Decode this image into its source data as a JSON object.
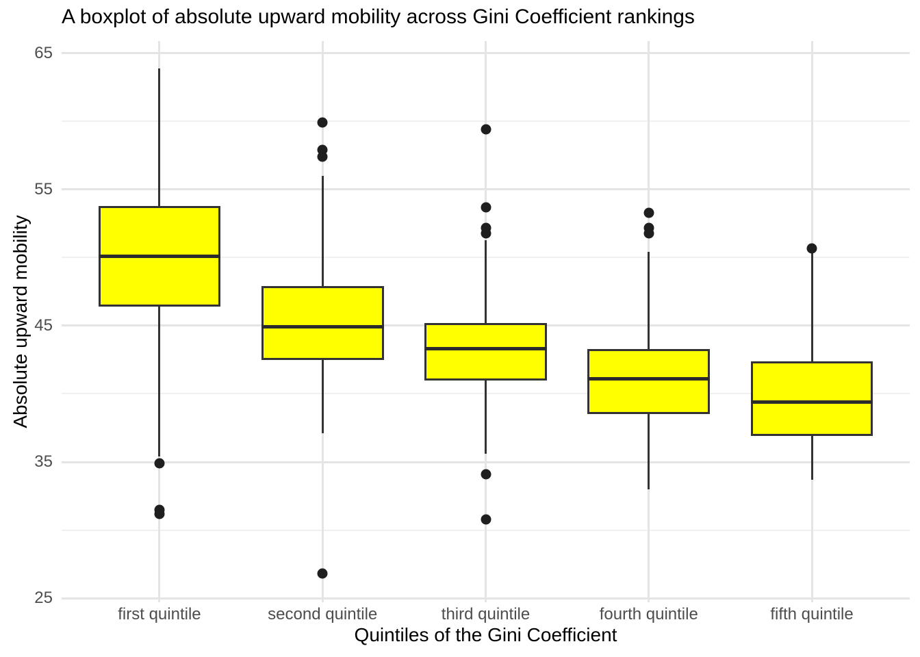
{
  "chart_data": {
    "type": "boxplot",
    "title": "A boxplot of absolute upward mobility across Gini Coefficient rankings",
    "xlabel": "Quintiles of the Gini Coefficient",
    "ylabel": "Absolute upward mobility",
    "categories": [
      "first quintile",
      "second quintile",
      "third quintile",
      "fourth quintile",
      "fifth quintile"
    ],
    "ylim": [
      24.7,
      65.9
    ],
    "yticks_major": [
      25,
      35,
      45,
      55,
      65
    ],
    "yticks_minor": [
      30,
      40,
      50,
      60
    ],
    "grid": "horizontal major+minor, vertical major at category centers",
    "legend": "none",
    "colors": {
      "box_fill": "#ffff00",
      "box_border": "#333333",
      "median_line": "#2b2b2b",
      "outlier_dot": "#1f1f1f",
      "grid_major": "#e4e4e4",
      "grid_minor": "#f0f0f0",
      "tick_label": "#4d4d4d",
      "title_text": "#000000"
    },
    "series": [
      {
        "category": "first quintile",
        "whisker_low": 35.4,
        "q1": 46.4,
        "median": 50.1,
        "q3": 53.8,
        "whisker_high": 63.9,
        "outliers": [
          34.9,
          31.5,
          31.2
        ]
      },
      {
        "category": "second quintile",
        "whisker_low": 37.1,
        "q1": 42.5,
        "median": 44.9,
        "q3": 47.9,
        "whisker_high": 56.0,
        "outliers": [
          59.9,
          57.9,
          57.4,
          26.8
        ]
      },
      {
        "category": "third quintile",
        "whisker_low": 35.6,
        "q1": 41.0,
        "median": 43.3,
        "q3": 45.2,
        "whisker_high": 51.3,
        "outliers": [
          59.4,
          53.7,
          52.2,
          51.8,
          34.1,
          30.8
        ]
      },
      {
        "category": "fourth quintile",
        "whisker_low": 33.0,
        "q1": 38.5,
        "median": 41.1,
        "q3": 43.3,
        "whisker_high": 50.4,
        "outliers": [
          53.3,
          52.2,
          51.8
        ]
      },
      {
        "category": "fifth quintile",
        "whisker_low": 33.7,
        "q1": 36.9,
        "median": 39.4,
        "q3": 42.4,
        "whisker_high": 50.4,
        "outliers": [
          50.7
        ]
      }
    ]
  }
}
